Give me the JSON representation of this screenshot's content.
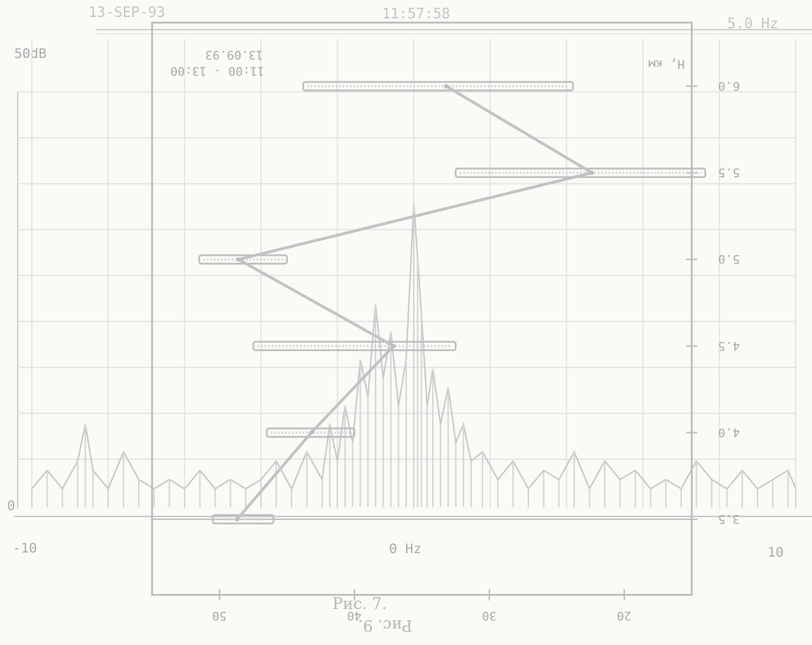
{
  "header": {
    "date": "13-SEP-93",
    "time": "11:57:58",
    "span": "5.0 Hz"
  },
  "spectrum": {
    "ref_level": "50dB",
    "zero_label": "0",
    "center_label": "0 Hz",
    "x_left_label": "-10",
    "x_right_label": "10"
  },
  "profile_overlay": {
    "date_label": "13.09.93",
    "time_range_label": "11:00 - 13:00",
    "y_unit_label": "H, км",
    "caption": "Рис. 9."
  },
  "mirrored_caption": "Рис. 7.",
  "chart_data": [
    {
      "type": "line",
      "title": "",
      "xlabel": "0 Hz",
      "ylabel": "",
      "x_ticks": [
        "-10",
        "10"
      ],
      "y_ticks": [
        "50dB",
        "0"
      ],
      "xlim": [
        -10,
        10
      ],
      "ylim": [
        0,
        50
      ],
      "grid": true,
      "note": "noise spectrum with central peak near 0 Hz",
      "series": [
        {
          "values": [
            [
              -10,
              2
            ],
            [
              -9.6,
              4
            ],
            [
              -9.2,
              2
            ],
            [
              -8.8,
              5
            ],
            [
              -8.6,
              9
            ],
            [
              -8.4,
              4
            ],
            [
              -8.0,
              2
            ],
            [
              -7.6,
              6
            ],
            [
              -7.2,
              3
            ],
            [
              -6.8,
              2
            ],
            [
              -6.4,
              3
            ],
            [
              -6.0,
              2
            ],
            [
              -5.6,
              4
            ],
            [
              -5.2,
              2
            ],
            [
              -4.8,
              3
            ],
            [
              -4.4,
              2
            ],
            [
              -4.0,
              3
            ],
            [
              -3.6,
              5
            ],
            [
              -3.2,
              2
            ],
            [
              -2.8,
              6
            ],
            [
              -2.4,
              3
            ],
            [
              -2.2,
              9
            ],
            [
              -2.0,
              5
            ],
            [
              -1.8,
              11
            ],
            [
              -1.6,
              7
            ],
            [
              -1.4,
              16
            ],
            [
              -1.2,
              12
            ],
            [
              -1.0,
              22
            ],
            [
              -0.8,
              14
            ],
            [
              -0.6,
              19
            ],
            [
              -0.4,
              11
            ],
            [
              -0.2,
              16
            ],
            [
              0.0,
              33
            ],
            [
              0.1,
              27
            ],
            [
              0.2,
              21
            ],
            [
              0.35,
              11
            ],
            [
              0.5,
              15
            ],
            [
              0.7,
              9
            ],
            [
              0.9,
              13
            ],
            [
              1.1,
              7
            ],
            [
              1.3,
              9
            ],
            [
              1.5,
              5
            ],
            [
              1.8,
              6
            ],
            [
              2.2,
              3
            ],
            [
              2.6,
              5
            ],
            [
              3.0,
              2
            ],
            [
              3.4,
              4
            ],
            [
              3.8,
              3
            ],
            [
              4.2,
              6
            ],
            [
              4.6,
              2
            ],
            [
              5.0,
              5
            ],
            [
              5.4,
              3
            ],
            [
              5.8,
              4
            ],
            [
              6.2,
              2
            ],
            [
              6.6,
              3
            ],
            [
              7.0,
              2
            ],
            [
              7.4,
              5
            ],
            [
              7.8,
              3
            ],
            [
              8.2,
              2
            ],
            [
              8.6,
              4
            ],
            [
              9.0,
              2
            ],
            [
              9.4,
              3
            ],
            [
              9.8,
              4
            ],
            [
              10,
              2
            ]
          ]
        }
      ]
    },
    {
      "type": "line",
      "title": "",
      "xlabel": "",
      "ylabel": "H, км",
      "x_ticks": [
        "50",
        "40",
        "30",
        "20"
      ],
      "y_ticks": [
        "6.0",
        "5.5",
        "5.0",
        "4.5",
        "4.0",
        "3.5"
      ],
      "xlim": [
        55,
        15
      ],
      "ylim": [
        3.5,
        6.0
      ],
      "grid": true,
      "series": [
        {
          "values": [
            {
              "h": 6.0,
              "x": 33.2,
              "err": [
                43.8,
                23.8
              ]
            },
            {
              "h": 5.5,
              "x": 22.4,
              "err": [
                32.5,
                14.0
              ]
            },
            {
              "h": 5.0,
              "x": 48.6,
              "err": [
                51.5,
                45.0
              ]
            },
            {
              "h": 4.5,
              "x": 37.1,
              "err": [
                47.5,
                32.5
              ]
            },
            {
              "h": 4.0,
              "x": 43.2,
              "err": [
                46.5,
                40.0
              ]
            },
            {
              "h": 3.5,
              "x": 48.7,
              "err": [
                50.5,
                46.0
              ]
            }
          ]
        }
      ]
    }
  ]
}
